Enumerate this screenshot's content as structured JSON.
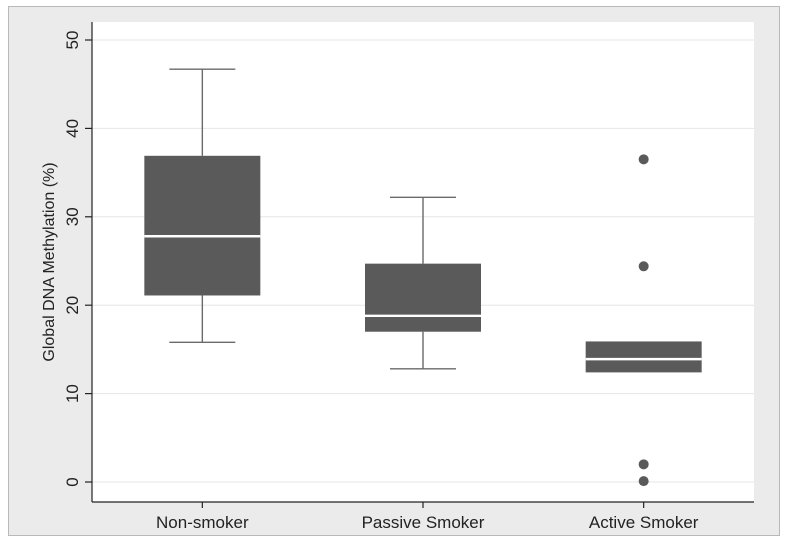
{
  "chart_data": {
    "type": "box",
    "title": "",
    "xlabel": "",
    "ylabel": "Global DNA Methylation (%)",
    "ylim": [
      0,
      52
    ],
    "yticks": [
      0,
      10,
      20,
      30,
      40,
      50
    ],
    "ytick_labels": [
      "0",
      "10",
      "20",
      "30",
      "40",
      "50"
    ],
    "grid": true,
    "categories": [
      "Non-smoker",
      "Passive Smoker",
      "Active Smoker"
    ],
    "boxes": [
      {
        "category": "Non-smoker",
        "whisker_low": 15.8,
        "q1": 21.1,
        "median": 27.8,
        "q3": 36.9,
        "whisker_high": 46.7,
        "outliers": []
      },
      {
        "category": "Passive Smoker",
        "whisker_low": 12.8,
        "q1": 17.0,
        "median": 18.8,
        "q3": 24.7,
        "whisker_high": 32.2,
        "outliers": []
      },
      {
        "category": "Active Smoker",
        "whisker_low": null,
        "q1": 12.4,
        "median": 13.9,
        "q3": 15.9,
        "whisker_high": null,
        "outliers": [
          36.5,
          24.4,
          2.0,
          0.1
        ]
      }
    ],
    "colors": {
      "box": "#5a5a5a",
      "median": "#ffffff",
      "whisker": "#6a6a6a",
      "outlier": "#5a5a5a",
      "grid": "#e6e6e6",
      "plot_bg": "#ffffff",
      "outer_bg": "#ebebeb"
    }
  }
}
